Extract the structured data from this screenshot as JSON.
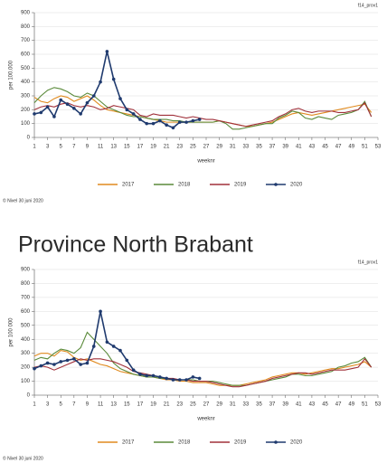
{
  "chart_data": [
    {
      "type": "line",
      "note": "f14_prov1",
      "ylabel": "per 100.000",
      "xlabel": "weeknr",
      "source": "© Nivel 30 juni 2020",
      "x": [
        1,
        2,
        3,
        4,
        5,
        6,
        7,
        8,
        9,
        10,
        11,
        12,
        13,
        14,
        15,
        16,
        17,
        18,
        19,
        20,
        21,
        22,
        23,
        24,
        25,
        26,
        27,
        28,
        29,
        30,
        31,
        32,
        33,
        34,
        35,
        36,
        37,
        38,
        39,
        40,
        41,
        42,
        43,
        44,
        45,
        46,
        47,
        48,
        49,
        50,
        51,
        52
      ],
      "xlim": [
        1,
        53
      ],
      "xticks": [
        1,
        3,
        5,
        7,
        9,
        11,
        13,
        15,
        17,
        19,
        21,
        23,
        25,
        27,
        29,
        31,
        33,
        35,
        37,
        39,
        41,
        43,
        45,
        47,
        49,
        51,
        53
      ],
      "ylim": [
        0,
        900
      ],
      "yticks": [
        0,
        100,
        200,
        300,
        400,
        500,
        600,
        700,
        800,
        900
      ],
      "grid": true,
      "series": [
        {
          "name": "2017",
          "color": "#e08a1e",
          "values": [
            290,
            260,
            250,
            280,
            300,
            290,
            260,
            280,
            300,
            270,
            230,
            200,
            190,
            180,
            170,
            160,
            150,
            140,
            130,
            120,
            110,
            110,
            110,
            110,
            110,
            110,
            110,
            110,
            120,
            110,
            100,
            90,
            80,
            80,
            90,
            100,
            110,
            130,
            150,
            170,
            180,
            170,
            160,
            170,
            180,
            190,
            200,
            210,
            220,
            230,
            240,
            180
          ]
        },
        {
          "name": "2018",
          "color": "#5a8a3a",
          "values": [
            250,
            300,
            340,
            360,
            350,
            330,
            300,
            290,
            320,
            300,
            260,
            220,
            200,
            180,
            160,
            150,
            150,
            140,
            130,
            130,
            130,
            120,
            120,
            110,
            110,
            110,
            110,
            110,
            120,
            100,
            60,
            60,
            70,
            80,
            90,
            100,
            100,
            140,
            160,
            190,
            180,
            140,
            130,
            150,
            140,
            130,
            160,
            170,
            180,
            200,
            260,
            150
          ]
        },
        {
          "name": "2019",
          "color": "#a0303a",
          "values": [
            200,
            220,
            230,
            220,
            240,
            250,
            230,
            220,
            230,
            220,
            200,
            210,
            230,
            220,
            210,
            200,
            160,
            150,
            170,
            160,
            160,
            160,
            150,
            140,
            150,
            140,
            130,
            130,
            120,
            110,
            100,
            90,
            80,
            90,
            100,
            110,
            120,
            150,
            170,
            200,
            210,
            190,
            180,
            190,
            190,
            190,
            180,
            180,
            190,
            200,
            250,
            150
          ]
        },
        {
          "name": "2020",
          "color": "#1f3a6e",
          "markers": true,
          "values": [
            170,
            180,
            220,
            150,
            270,
            240,
            210,
            170,
            250,
            300,
            400,
            620,
            420,
            280,
            200,
            170,
            130,
            100,
            100,
            120,
            90,
            70,
            110,
            110,
            120,
            130,
            null,
            null,
            null,
            null,
            null,
            null,
            null,
            null,
            null,
            null,
            null,
            null,
            null,
            null,
            null,
            null,
            null,
            null,
            null,
            null,
            null,
            null,
            null,
            null,
            null,
            null
          ]
        }
      ]
    },
    {
      "type": "line",
      "title": "Province North Brabant",
      "note": "f14_prov1",
      "ylabel": "per 100 000",
      "xlabel": "weeknr",
      "source": "© Nivel 30 juni 2020",
      "x": [
        1,
        2,
        3,
        4,
        5,
        6,
        7,
        8,
        9,
        10,
        11,
        12,
        13,
        14,
        15,
        16,
        17,
        18,
        19,
        20,
        21,
        22,
        23,
        24,
        25,
        26,
        27,
        28,
        29,
        30,
        31,
        32,
        33,
        34,
        35,
        36,
        37,
        38,
        39,
        40,
        41,
        42,
        43,
        44,
        45,
        46,
        47,
        48,
        49,
        50,
        51,
        52
      ],
      "xlim": [
        1,
        53
      ],
      "xticks": [
        1,
        3,
        5,
        7,
        9,
        11,
        13,
        15,
        17,
        19,
        21,
        23,
        25,
        27,
        29,
        31,
        33,
        35,
        37,
        39,
        41,
        43,
        45,
        47,
        49,
        51,
        53
      ],
      "ylim": [
        0,
        900
      ],
      "yticks": [
        0,
        100,
        200,
        300,
        400,
        500,
        600,
        700,
        800,
        900
      ],
      "grid": true,
      "series": [
        {
          "name": "2017",
          "color": "#e08a1e",
          "values": [
            280,
            300,
            300,
            280,
            320,
            310,
            270,
            250,
            260,
            240,
            220,
            210,
            190,
            170,
            160,
            150,
            140,
            130,
            130,
            120,
            110,
            110,
            100,
            100,
            90,
            90,
            90,
            80,
            70,
            70,
            70,
            70,
            80,
            90,
            100,
            110,
            130,
            140,
            150,
            160,
            160,
            150,
            160,
            170,
            180,
            190,
            190,
            200,
            210,
            220,
            240,
            200
          ]
        },
        {
          "name": "2018",
          "color": "#5a8a3a",
          "values": [
            250,
            270,
            260,
            300,
            330,
            320,
            300,
            340,
            450,
            400,
            350,
            300,
            230,
            190,
            170,
            150,
            140,
            130,
            130,
            120,
            120,
            110,
            110,
            110,
            110,
            100,
            100,
            100,
            90,
            80,
            70,
            70,
            70,
            80,
            90,
            100,
            110,
            120,
            130,
            150,
            150,
            140,
            140,
            150,
            160,
            170,
            200,
            210,
            230,
            240,
            270,
            200
          ]
        },
        {
          "name": "2019",
          "color": "#a0303a",
          "values": [
            200,
            210,
            200,
            180,
            200,
            220,
            240,
            260,
            250,
            260,
            260,
            250,
            240,
            220,
            200,
            170,
            160,
            150,
            140,
            130,
            120,
            120,
            110,
            110,
            100,
            100,
            100,
            90,
            80,
            70,
            60,
            60,
            70,
            80,
            90,
            100,
            120,
            130,
            140,
            150,
            160,
            160,
            150,
            160,
            170,
            180,
            180,
            180,
            190,
            200,
            260,
            200
          ]
        },
        {
          "name": "2020",
          "color": "#1f3a6e",
          "markers": true,
          "values": [
            190,
            210,
            230,
            220,
            240,
            250,
            260,
            220,
            230,
            350,
            600,
            380,
            350,
            320,
            250,
            180,
            150,
            140,
            140,
            130,
            120,
            110,
            110,
            110,
            130,
            120,
            null,
            null,
            null,
            null,
            null,
            null,
            null,
            null,
            null,
            null,
            null,
            null,
            null,
            null,
            null,
            null,
            null,
            null,
            null,
            null,
            null,
            null,
            null,
            null,
            null,
            null
          ]
        }
      ]
    }
  ]
}
